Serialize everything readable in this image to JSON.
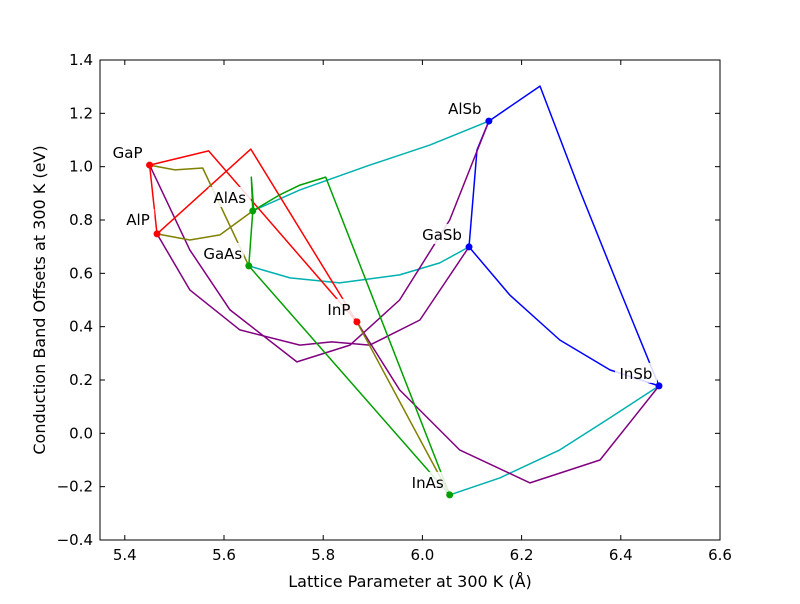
{
  "chart_data": {
    "type": "line",
    "title": "",
    "xlabel": "Lattice Parameter at 300 K (Å)",
    "ylabel": "Conduction Band Offsets at 300 K (eV)",
    "xlim": [
      5.35,
      6.6
    ],
    "ylim": [
      -0.4,
      1.4
    ],
    "xticks": [
      "5.4",
      "5.6",
      "5.8",
      "6.0",
      "6.2",
      "6.4",
      "6.6"
    ],
    "yticks": [
      "−0.4",
      "−0.2",
      "0.0",
      "0.2",
      "0.4",
      "0.6",
      "0.8",
      "1.0",
      "1.2",
      "1.4"
    ],
    "grid": false,
    "points": [
      {
        "label": "GaP",
        "x": 5.45,
        "y": 1.006,
        "color": "#ff0000"
      },
      {
        "label": "AlP",
        "x": 5.465,
        "y": 0.748,
        "color": "#ff0000"
      },
      {
        "label": "AlAs",
        "x": 5.658,
        "y": 0.834,
        "color": "#00a000"
      },
      {
        "label": "GaAs",
        "x": 5.65,
        "y": 0.628,
        "color": "#00a000"
      },
      {
        "label": "InP",
        "x": 5.868,
        "y": 0.418,
        "color": "#ff0000"
      },
      {
        "label": "GaSb",
        "x": 6.094,
        "y": 0.699,
        "color": "#0000ff"
      },
      {
        "label": "AlSb",
        "x": 6.134,
        "y": 1.171,
        "color": "#0000ff"
      },
      {
        "label": "InSb",
        "x": 6.477,
        "y": 0.178,
        "color": "#0000ff"
      },
      {
        "label": "InAs",
        "x": 6.055,
        "y": -0.231,
        "color": "#00a000"
      }
    ],
    "curves": [
      {
        "color": "#00b0b0",
        "points": [
          [
            5.658,
            0.834
          ],
          [
            5.753,
            0.913
          ],
          [
            5.894,
            1.006
          ],
          [
            6.015,
            1.081
          ],
          [
            6.134,
            1.171
          ]
        ]
      },
      {
        "color": "#00b0b0",
        "points": [
          [
            5.65,
            0.628
          ],
          [
            5.733,
            0.583
          ],
          [
            5.833,
            0.564
          ],
          [
            5.954,
            0.594
          ],
          [
            6.035,
            0.639
          ],
          [
            6.094,
            0.699
          ]
        ]
      },
      {
        "color": "#00b0b0",
        "points": [
          [
            6.055,
            -0.231
          ],
          [
            6.156,
            -0.167
          ],
          [
            6.277,
            -0.062
          ],
          [
            6.378,
            0.058
          ],
          [
            6.477,
            0.178
          ]
        ]
      },
      {
        "color": "#0000ff",
        "points": [
          [
            6.134,
            1.171
          ],
          [
            6.237,
            1.302
          ],
          [
            6.317,
            0.913
          ],
          [
            6.398,
            0.538
          ],
          [
            6.477,
            0.178
          ]
        ]
      },
      {
        "color": "#0000ff",
        "points": [
          [
            6.134,
            1.171
          ],
          [
            6.11,
            1.063
          ],
          [
            6.094,
            0.699
          ]
        ]
      },
      {
        "color": "#0000ff",
        "points": [
          [
            6.094,
            0.699
          ],
          [
            6.176,
            0.519
          ],
          [
            6.277,
            0.35
          ],
          [
            6.378,
            0.238
          ],
          [
            6.477,
            0.178
          ]
        ]
      },
      {
        "color": "#800080",
        "points": [
          [
            5.45,
            1.006
          ],
          [
            5.531,
            0.688
          ],
          [
            5.612,
            0.463
          ],
          [
            5.747,
            0.268
          ],
          [
            5.854,
            0.331
          ],
          [
            5.954,
            0.5
          ],
          [
            6.055,
            0.8
          ],
          [
            6.134,
            1.171
          ]
        ]
      },
      {
        "color": "#800080",
        "points": [
          [
            5.465,
            0.748
          ],
          [
            5.531,
            0.538
          ],
          [
            5.632,
            0.388
          ],
          [
            5.753,
            0.331
          ],
          [
            5.817,
            0.343
          ],
          [
            5.894,
            0.331
          ],
          [
            5.995,
            0.425
          ],
          [
            6.094,
            0.699
          ]
        ]
      },
      {
        "color": "#800080",
        "points": [
          [
            5.868,
            0.418
          ],
          [
            5.954,
            0.163
          ],
          [
            6.075,
            -0.062
          ],
          [
            6.217,
            -0.186
          ],
          [
            6.358,
            -0.1
          ],
          [
            6.477,
            0.178
          ]
        ]
      },
      {
        "color": "#ff0000",
        "points": [
          [
            5.45,
            1.006
          ],
          [
            5.465,
            0.748
          ]
        ]
      },
      {
        "color": "#ff0000",
        "points": [
          [
            5.45,
            1.006
          ],
          [
            5.569,
            1.059
          ],
          [
            5.868,
            0.418
          ]
        ]
      },
      {
        "color": "#ff0000",
        "points": [
          [
            5.465,
            0.748
          ],
          [
            5.654,
            1.066
          ],
          [
            5.868,
            0.418
          ]
        ]
      },
      {
        "color": "#808000",
        "points": [
          [
            5.45,
            1.006
          ],
          [
            5.501,
            0.988
          ],
          [
            5.557,
            0.995
          ],
          [
            5.65,
            0.628
          ]
        ]
      },
      {
        "color": "#808000",
        "points": [
          [
            5.465,
            0.748
          ],
          [
            5.531,
            0.725
          ],
          [
            5.592,
            0.744
          ],
          [
            5.658,
            0.834
          ]
        ]
      },
      {
        "color": "#808000",
        "points": [
          [
            5.868,
            0.418
          ],
          [
            6.055,
            -0.231
          ]
        ]
      },
      {
        "color": "#00a000",
        "points": [
          [
            5.65,
            0.628
          ],
          [
            5.658,
            0.834
          ],
          [
            5.655,
            0.961
          ],
          [
            5.66,
            0.834
          ]
        ]
      },
      {
        "color": "#00a000",
        "points": [
          [
            5.658,
            0.834
          ],
          [
            5.712,
            0.894
          ],
          [
            5.753,
            0.931
          ],
          [
            5.805,
            0.961
          ],
          [
            6.055,
            -0.231
          ]
        ]
      },
      {
        "color": "#00a000",
        "points": [
          [
            5.65,
            0.628
          ],
          [
            6.055,
            -0.231
          ]
        ]
      }
    ]
  }
}
